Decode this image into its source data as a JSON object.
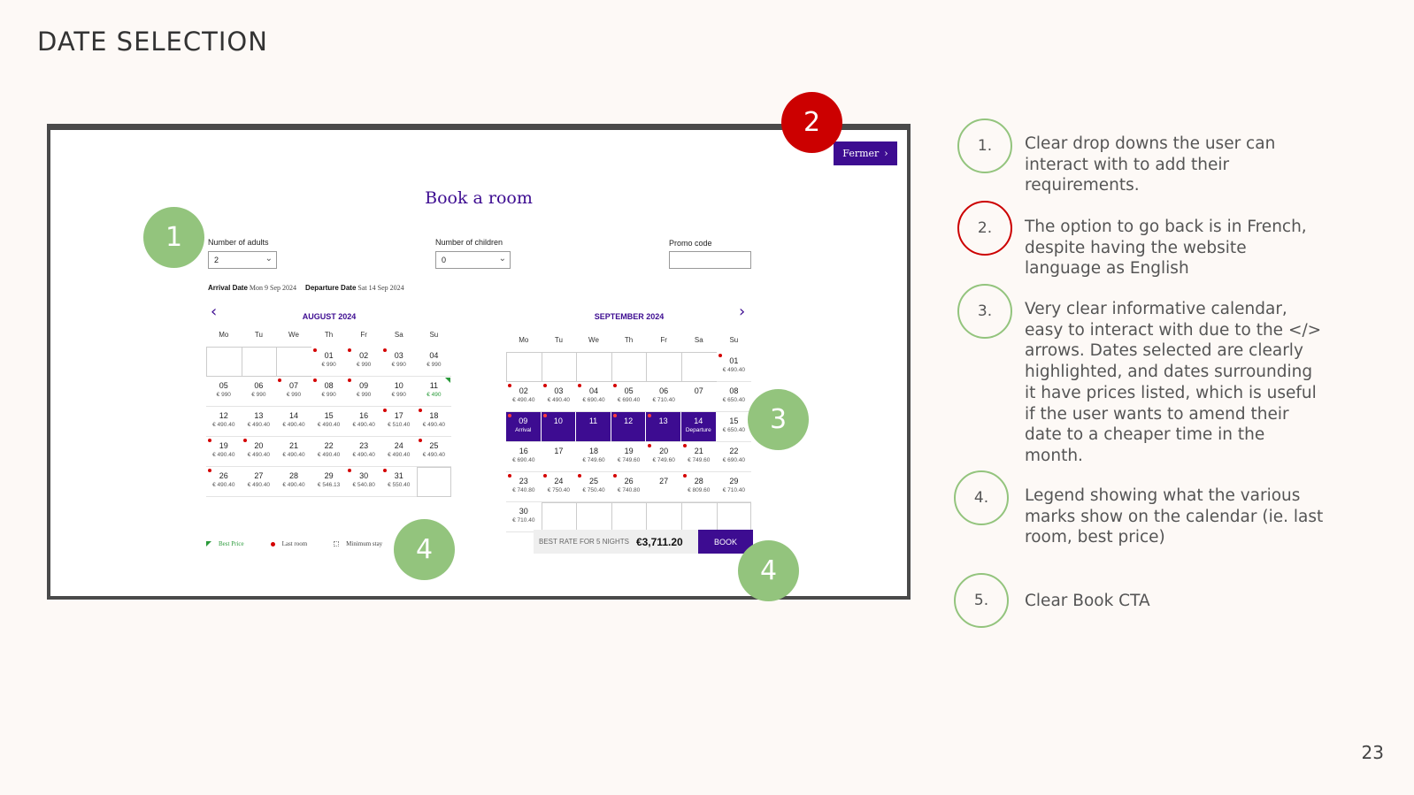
{
  "slide": {
    "title": "DATE SELECTION",
    "page_number": "23"
  },
  "booking": {
    "close_label": "Fermer",
    "title": "Book a room",
    "adults_label": "Number of adults",
    "adults_value": "2",
    "children_label": "Number of children",
    "children_value": "0",
    "promo_label": "Promo code",
    "promo_value": "",
    "arrival_label": "Arrival Date",
    "arrival_value": "Mon 9 Sep 2024",
    "departure_label": "Departure Date",
    "departure_value": "Sat 14 Sep 2024",
    "weekdays": [
      "Mo",
      "Tu",
      "We",
      "Th",
      "Fr",
      "Sa",
      "Su"
    ],
    "august": {
      "title": "AUGUST 2024",
      "days": [
        null,
        null,
        null,
        {
          "n": "01",
          "p": "€ 990",
          "dot": true
        },
        {
          "n": "02",
          "p": "€ 990",
          "dot": true
        },
        {
          "n": "03",
          "p": "€ 990",
          "dot": true
        },
        {
          "n": "04",
          "p": "€ 990"
        },
        {
          "n": "05",
          "p": "€ 990"
        },
        {
          "n": "06",
          "p": "€ 990"
        },
        {
          "n": "07",
          "p": "€ 990",
          "dot": true
        },
        {
          "n": "08",
          "p": "€ 990",
          "dot": true
        },
        {
          "n": "09",
          "p": "€ 990",
          "dot": true
        },
        {
          "n": "10",
          "p": "€ 990"
        },
        {
          "n": "11",
          "p": "€ 490",
          "best": true
        },
        {
          "n": "12",
          "p": "€ 490.40"
        },
        {
          "n": "13",
          "p": "€ 490.40"
        },
        {
          "n": "14",
          "p": "€ 490.40"
        },
        {
          "n": "15",
          "p": "€ 490.40"
        },
        {
          "n": "16",
          "p": "€ 490.40"
        },
        {
          "n": "17",
          "p": "€ 510.40",
          "dot": true
        },
        {
          "n": "18",
          "p": "€ 490.40",
          "dot": true
        },
        {
          "n": "19",
          "p": "€ 490.40",
          "dot": true
        },
        {
          "n": "20",
          "p": "€ 490.40",
          "dot": true
        },
        {
          "n": "21",
          "p": "€ 490.40"
        },
        {
          "n": "22",
          "p": "€ 490.40"
        },
        {
          "n": "23",
          "p": "€ 490.40"
        },
        {
          "n": "24",
          "p": "€ 490.40"
        },
        {
          "n": "25",
          "p": "€ 490.40",
          "dot": true
        },
        {
          "n": "26",
          "p": "€ 490.40",
          "dot": true
        },
        {
          "n": "27",
          "p": "€ 490.40"
        },
        {
          "n": "28",
          "p": "€ 490.40"
        },
        {
          "n": "29",
          "p": "€ 546.13"
        },
        {
          "n": "30",
          "p": "€ 540.80",
          "dot": true
        },
        {
          "n": "31",
          "p": "€ 550.40",
          "dot": true
        },
        null
      ]
    },
    "september": {
      "title": "SEPTEMBER 2024",
      "days": [
        null,
        null,
        null,
        null,
        null,
        null,
        {
          "n": "01",
          "p": "€ 490.40",
          "dot": true
        },
        {
          "n": "02",
          "p": "€ 490.40",
          "dot": true
        },
        {
          "n": "03",
          "p": "€ 490.40",
          "dot": true
        },
        {
          "n": "04",
          "p": "€ 690.40",
          "dot": true
        },
        {
          "n": "05",
          "p": "€ 690.40",
          "dot": true
        },
        {
          "n": "06",
          "p": "€ 710.40"
        },
        {
          "n": "07",
          "p": ""
        },
        {
          "n": "08",
          "p": "€ 650.40"
        },
        {
          "n": "09",
          "p": "Arrival",
          "dot": true,
          "sel": true
        },
        {
          "n": "10",
          "p": "",
          "dot": true,
          "sel": true
        },
        {
          "n": "11",
          "p": "",
          "sel": true
        },
        {
          "n": "12",
          "p": "",
          "dot": true,
          "sel": true
        },
        {
          "n": "13",
          "p": "",
          "dot": true,
          "sel": true
        },
        {
          "n": "14",
          "p": "Departure",
          "sel": true
        },
        {
          "n": "15",
          "p": "€ 650.40"
        },
        {
          "n": "16",
          "p": "€ 690.40"
        },
        {
          "n": "17",
          "p": ""
        },
        {
          "n": "18",
          "p": "€ 749.60"
        },
        {
          "n": "19",
          "p": "€ 749.60"
        },
        {
          "n": "20",
          "p": "€ 749.60",
          "dot": true
        },
        {
          "n": "21",
          "p": "€ 749.60",
          "dot": true
        },
        {
          "n": "22",
          "p": "€ 690.40"
        },
        {
          "n": "23",
          "p": "€ 740.80",
          "dot": true
        },
        {
          "n": "24",
          "p": "€ 750.40",
          "dot": true
        },
        {
          "n": "25",
          "p": "€ 750.40",
          "dot": true
        },
        {
          "n": "26",
          "p": "€ 740.80",
          "dot": true
        },
        {
          "n": "27",
          "p": ""
        },
        {
          "n": "28",
          "p": "€ 809.60",
          "dot": true
        },
        {
          "n": "29",
          "p": "€ 710.40"
        },
        {
          "n": "30",
          "p": "€ 710.40"
        },
        null,
        null,
        null,
        null,
        null,
        null
      ]
    },
    "legend": {
      "best": "Best Price",
      "last": "Last room",
      "min": "Minimum stay"
    },
    "rate_label": "BEST RATE FOR 5 NIGHTS",
    "rate_value": "€3,711.20",
    "book_label": "BOOK"
  },
  "callouts": {
    "c1": "1",
    "c2": "2",
    "c3": "3",
    "c4a": "4",
    "c4b": "4"
  },
  "notes": [
    {
      "num": "1.",
      "text": "Clear drop downs the user can interact with to add their requirements."
    },
    {
      "num": "2.",
      "text": "The option to go back is in French, despite having the website language as English"
    },
    {
      "num": "3.",
      "text": "Very clear informative calendar, easy to interact with due to the </> arrows. Dates selected are clearly highlighted, and dates surrounding it have prices listed, which is useful if the user wants to amend their date to a cheaper time in the month."
    },
    {
      "num": "4.",
      "text": "Legend showing what the various marks show on the calendar (ie. last room, best price)"
    },
    {
      "num": "5.",
      "text": "Clear Book CTA"
    }
  ],
  "colors": {
    "brand": "#3d0c91",
    "badge_green": "#93c47d",
    "badge_red": "#cc0000"
  }
}
